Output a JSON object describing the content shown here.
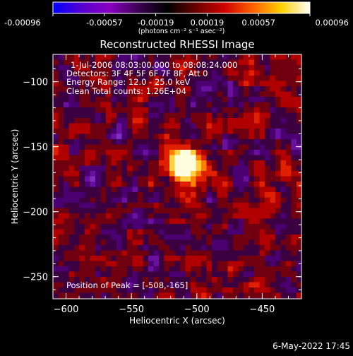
{
  "colorbar": {
    "ticks": [
      "-0.00096",
      "-0.00057",
      "-0.00019",
      "0.00019",
      "0.00057",
      "0.00096"
    ],
    "unit_label": "(photons cm⁻² s⁻¹ asec⁻²)",
    "colors": [
      "#0000ff",
      "#5500d0",
      "#8a00c0",
      "#3a0050",
      "#000000",
      "#6a0000",
      "#d00000",
      "#ff6000",
      "#ffd000",
      "#ffffff"
    ]
  },
  "chart_data": {
    "type": "heatmap",
    "title": "Reconstructed RHESSI Image",
    "xlabel": "Heliocentric X (arcsec)",
    "ylabel": "Heliocentric Y (arcsec)",
    "xlim": [
      -610,
      -420
    ],
    "ylim": [
      -267,
      -79
    ],
    "xticks": [
      -600,
      -550,
      -500,
      -450
    ],
    "yticks": [
      -100,
      -150,
      -200,
      -250
    ],
    "peak_position": [
      -508,
      -165
    ],
    "annotations": [
      "1-Jul-2006 08:03:00.000 to 08:08:24.000",
      "Detectors: 3F 4F 5F 6F 7F 8F, Att 0",
      "Energy Range: 12.0 - 25.0 keV",
      "Clean    Total counts: 1.26E+04",
      "Position of Peak = [-508,-165]"
    ]
  },
  "footer": {
    "date": "6-May-2022 17:45"
  }
}
